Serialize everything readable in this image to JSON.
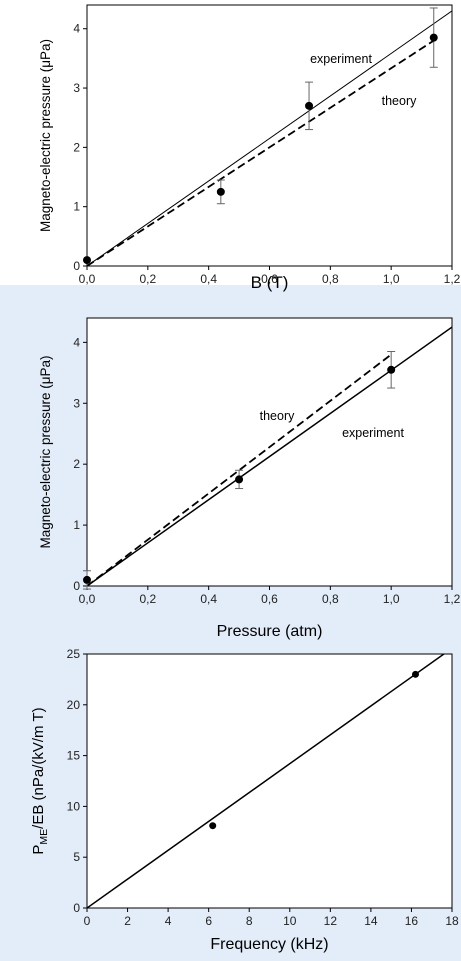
{
  "chart_data": [
    {
      "type": "scatter",
      "xlabel": "B (T)",
      "ylabel": "Magneto-electric pressure (μPa)",
      "xlim": [
        0,
        1.2
      ],
      "ylim": [
        0,
        4.4
      ],
      "xticks": [
        "0,0",
        "0,2",
        "0,4",
        "0,6",
        "0,8",
        "1,0",
        "1,2"
      ],
      "yticks": [
        "0",
        "1",
        "2",
        "3",
        "4"
      ],
      "series": [
        {
          "name": "experiment",
          "style": "solid",
          "x": [
            0,
            1.2
          ],
          "y": [
            0,
            4.3
          ]
        },
        {
          "name": "theory",
          "style": "dashed",
          "x": [
            0,
            1.14
          ],
          "y": [
            0,
            3.8
          ]
        }
      ],
      "points": {
        "x": [
          0.0,
          0.44,
          0.73,
          1.14
        ],
        "y": [
          0.1,
          1.25,
          2.7,
          3.85
        ],
        "err_low": [
          0.0,
          0.2,
          0.4,
          0.5
        ],
        "err_high": [
          0.0,
          0.2,
          0.4,
          0.5
        ]
      },
      "annotations": [
        "experiment",
        "theory"
      ],
      "grid": false
    },
    {
      "type": "scatter",
      "xlabel": "Pressure (atm)",
      "ylabel": "Magneto-electric pressure (μPa)",
      "xlim": [
        0,
        1.2
      ],
      "ylim": [
        0,
        4.4
      ],
      "xticks": [
        "0,0",
        "0,2",
        "0,4",
        "0,6",
        "0,8",
        "1,0",
        "1,2"
      ],
      "yticks": [
        "0",
        "1",
        "2",
        "3",
        "4"
      ],
      "series": [
        {
          "name": "experiment",
          "style": "solid",
          "x": [
            0,
            1.2
          ],
          "y": [
            0,
            4.25
          ]
        },
        {
          "name": "theory",
          "style": "dashed",
          "x": [
            0,
            1.0
          ],
          "y": [
            0,
            3.8
          ]
        }
      ],
      "points": {
        "x": [
          0.0,
          0.5,
          1.0
        ],
        "y": [
          0.1,
          1.75,
          3.55
        ],
        "err_low": [
          0.15,
          0.15,
          0.3
        ],
        "err_high": [
          0.15,
          0.15,
          0.3
        ]
      },
      "annotations": [
        "theory",
        "experiment"
      ],
      "grid": false
    },
    {
      "type": "scatter",
      "xlabel": "Frequency (kHz)",
      "ylabel": "P_ME/EB (nPa/(kV/m T)",
      "xlim": [
        0,
        18
      ],
      "ylim": [
        0,
        25
      ],
      "xticks": [
        "0",
        "2",
        "4",
        "6",
        "8",
        "10",
        "12",
        "14",
        "16",
        "18"
      ],
      "yticks": [
        "0",
        "5",
        "10",
        "15",
        "20",
        "25"
      ],
      "series": [
        {
          "style": "solid",
          "x": [
            0,
            17.6
          ],
          "y": [
            0,
            25
          ]
        }
      ],
      "points": {
        "x": [
          6.2,
          16.2
        ],
        "y": [
          8.1,
          23.0
        ]
      },
      "grid": false
    }
  ]
}
